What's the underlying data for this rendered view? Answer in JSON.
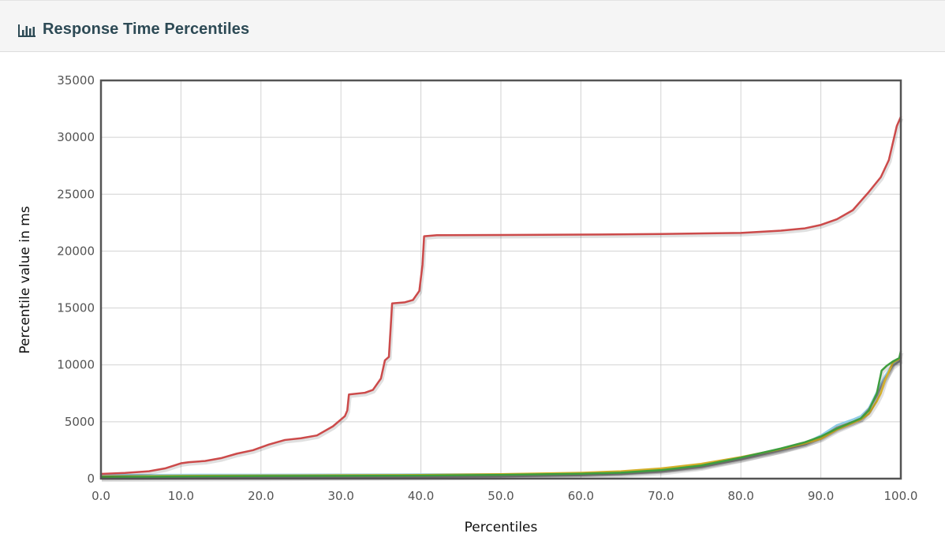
{
  "panel": {
    "title": "Response Time Percentiles",
    "icon": "bar-chart-icon"
  },
  "chart_data": {
    "type": "line",
    "xlabel": "Percentiles",
    "ylabel": "Percentile value in ms",
    "xlim": [
      0,
      100
    ],
    "ylim": [
      0,
      35000
    ],
    "x_ticks": [
      "0.0",
      "10.0",
      "20.0",
      "30.0",
      "40.0",
      "50.0",
      "60.0",
      "70.0",
      "80.0",
      "90.0",
      "100.0"
    ],
    "y_ticks": [
      "0",
      "5000",
      "10000",
      "15000",
      "20000",
      "25000",
      "30000",
      "35000"
    ],
    "grid": true,
    "legend": "none",
    "series": [
      {
        "color": "#cc4a4a",
        "points": [
          [
            0,
            420
          ],
          [
            3,
            500
          ],
          [
            6,
            650
          ],
          [
            8,
            900
          ],
          [
            10,
            1350
          ],
          [
            11,
            1450
          ],
          [
            13,
            1550
          ],
          [
            15,
            1800
          ],
          [
            17,
            2200
          ],
          [
            19,
            2500
          ],
          [
            21,
            3000
          ],
          [
            23,
            3400
          ],
          [
            25,
            3550
          ],
          [
            27,
            3800
          ],
          [
            29,
            4600
          ],
          [
            30.5,
            5500
          ],
          [
            30.8,
            6000
          ],
          [
            31,
            7400
          ],
          [
            33,
            7550
          ],
          [
            34,
            7800
          ],
          [
            35,
            8800
          ],
          [
            35.5,
            10400
          ],
          [
            36,
            10700
          ],
          [
            36.4,
            15400
          ],
          [
            38,
            15500
          ],
          [
            39,
            15700
          ],
          [
            39.8,
            16500
          ],
          [
            40.2,
            18800
          ],
          [
            40.4,
            21300
          ],
          [
            42,
            21400
          ],
          [
            50,
            21420
          ],
          [
            60,
            21450
          ],
          [
            70,
            21500
          ],
          [
            80,
            21600
          ],
          [
            85,
            21800
          ],
          [
            88,
            22000
          ],
          [
            90,
            22300
          ],
          [
            92,
            22800
          ],
          [
            94,
            23600
          ],
          [
            96,
            25200
          ],
          [
            97.5,
            26500
          ],
          [
            98.5,
            28000
          ],
          [
            99,
            29500
          ],
          [
            99.5,
            31000
          ],
          [
            100,
            31800
          ]
        ]
      },
      {
        "color": "#d4b02a",
        "points": [
          [
            0,
            200
          ],
          [
            10,
            250
          ],
          [
            20,
            280
          ],
          [
            30,
            300
          ],
          [
            40,
            330
          ],
          [
            50,
            400
          ],
          [
            60,
            520
          ],
          [
            65,
            650
          ],
          [
            70,
            900
          ],
          [
            75,
            1300
          ],
          [
            80,
            1900
          ],
          [
            85,
            2600
          ],
          [
            88,
            3100
          ],
          [
            90,
            3500
          ],
          [
            92,
            4300
          ],
          [
            94,
            4900
          ],
          [
            95,
            5200
          ],
          [
            96,
            5700
          ],
          [
            97,
            6800
          ],
          [
            97.5,
            7500
          ],
          [
            98,
            8600
          ],
          [
            99,
            10200
          ],
          [
            100,
            10600
          ]
        ]
      },
      {
        "color": "#3e9e3e",
        "points": [
          [
            0,
            150
          ],
          [
            10,
            200
          ],
          [
            20,
            230
          ],
          [
            30,
            250
          ],
          [
            40,
            280
          ],
          [
            50,
            340
          ],
          [
            60,
            430
          ],
          [
            65,
            530
          ],
          [
            70,
            750
          ],
          [
            75,
            1150
          ],
          [
            80,
            1850
          ],
          [
            85,
            2650
          ],
          [
            88,
            3200
          ],
          [
            90,
            3700
          ],
          [
            92,
            4400
          ],
          [
            94,
            5000
          ],
          [
            95,
            5300
          ],
          [
            96,
            6000
          ],
          [
            97,
            7500
          ],
          [
            97.6,
            9500
          ],
          [
            98.2,
            9900
          ],
          [
            99,
            10300
          ],
          [
            99.8,
            10600
          ],
          [
            100,
            11200
          ]
        ]
      },
      {
        "color": "#8a8a8a",
        "points": [
          [
            0,
            30
          ],
          [
            10,
            60
          ],
          [
            20,
            90
          ],
          [
            30,
            120
          ],
          [
            40,
            150
          ],
          [
            50,
            200
          ],
          [
            60,
            300
          ],
          [
            65,
            400
          ],
          [
            70,
            600
          ],
          [
            75,
            1000
          ],
          [
            80,
            1700
          ],
          [
            85,
            2500
          ],
          [
            88,
            3000
          ],
          [
            90,
            3600
          ],
          [
            92,
            4500
          ],
          [
            94,
            5000
          ],
          [
            95,
            5300
          ],
          [
            96,
            6100
          ],
          [
            97,
            7300
          ],
          [
            98,
            8800
          ],
          [
            99,
            9900
          ],
          [
            100,
            10400
          ]
        ]
      },
      {
        "color": "#8ecbe6",
        "points": [
          [
            0,
            320
          ],
          [
            10,
            340
          ],
          [
            20,
            350
          ],
          [
            30,
            360
          ],
          [
            40,
            380
          ],
          [
            50,
            400
          ],
          [
            60,
            450
          ],
          [
            65,
            550
          ],
          [
            70,
            750
          ],
          [
            75,
            1100
          ],
          [
            80,
            1750
          ],
          [
            85,
            2500
          ],
          [
            88,
            3100
          ],
          [
            90,
            3800
          ],
          [
            92,
            4700
          ],
          [
            94,
            5200
          ],
          [
            95,
            5500
          ],
          [
            96,
            6200
          ],
          [
            97,
            7600
          ],
          [
            98,
            9000
          ],
          [
            99,
            10100
          ],
          [
            100,
            10500
          ]
        ]
      }
    ]
  }
}
